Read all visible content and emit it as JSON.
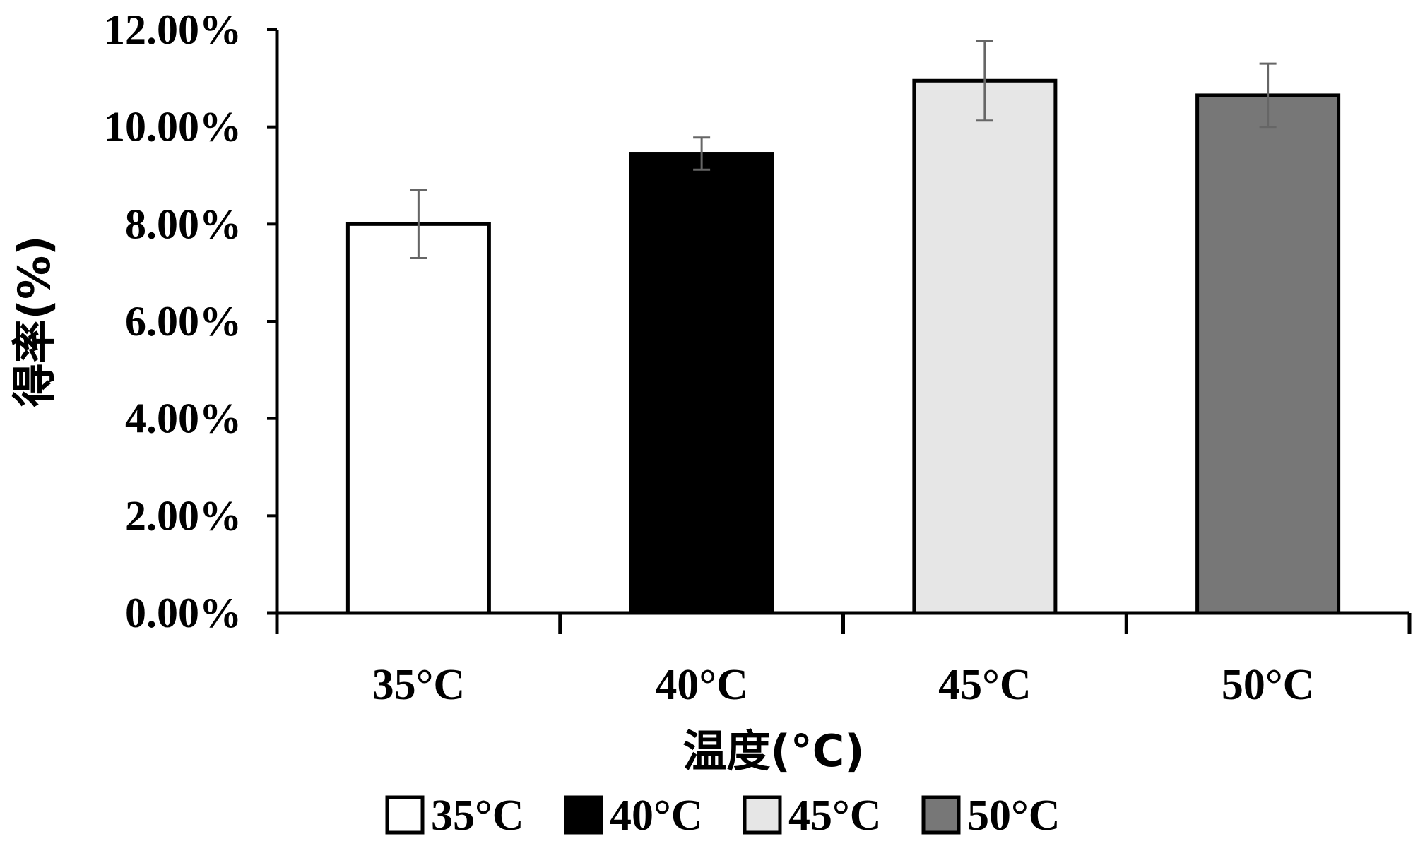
{
  "chart_data": {
    "type": "bar",
    "title": "",
    "xlabel": "温度(°C)",
    "ylabel": "得率(%)",
    "categories": [
      "35°C",
      "40°C",
      "45°C",
      "50°C"
    ],
    "values": [
      8.0,
      9.45,
      10.95,
      10.65
    ],
    "error": [
      0.7,
      0.33,
      0.82,
      0.65
    ],
    "ylim": [
      0,
      12
    ],
    "yticks": [
      0,
      2,
      4,
      6,
      8,
      10,
      12
    ],
    "ytick_labels": [
      "0.00%",
      "2.00%",
      "4.00%",
      "6.00%",
      "8.00%",
      "10.00%",
      "12.00%"
    ],
    "colors": [
      "#ffffff",
      "#000000",
      "#e6e6e6",
      "#777777"
    ],
    "legend": [
      "35°C",
      "40°C",
      "45°C",
      "50°C"
    ],
    "legend_position": "bottom",
    "grid": false
  }
}
